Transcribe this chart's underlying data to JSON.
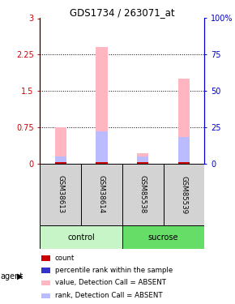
{
  "title": "GDS1734 / 263071_at",
  "samples": [
    "GSM38613",
    "GSM38614",
    "GSM85538",
    "GSM85539"
  ],
  "pink_bar_values": [
    0.75,
    2.4,
    0.22,
    1.75
  ],
  "blue_bar_values_pct": [
    5,
    22,
    5,
    18
  ],
  "pink_color": "#FFB6C1",
  "blue_color": "#BBBBFF",
  "red_dot_color": "#CC0000",
  "blue_dot_color": "#3333CC",
  "left_yticks": [
    0,
    0.75,
    1.5,
    2.25,
    3
  ],
  "right_yticks": [
    0,
    25,
    50,
    75,
    100
  ],
  "right_ylabels": [
    "0",
    "25",
    "50",
    "75",
    "100%"
  ],
  "left_tick_color": "#CC0000",
  "right_tick_color": "#0000CC",
  "legend_items": [
    {
      "color": "#CC0000",
      "label": "count"
    },
    {
      "color": "#3333CC",
      "label": "percentile rank within the sample"
    },
    {
      "color": "#FFB6C1",
      "label": "value, Detection Call = ABSENT"
    },
    {
      "color": "#BBBBFF",
      "label": "rank, Detection Call = ABSENT"
    }
  ],
  "control_light_green": "#c8f5c8",
  "sucrose_green": "#66dd66",
  "sample_box_color": "#d3d3d3"
}
